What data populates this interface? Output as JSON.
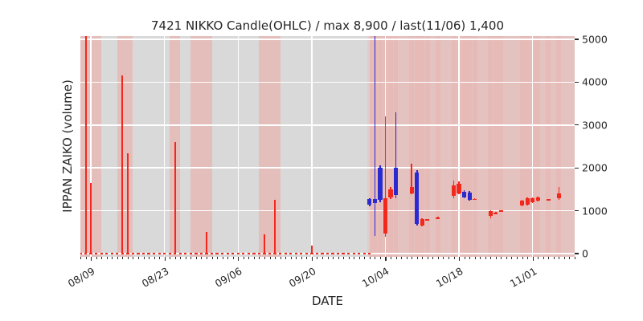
{
  "colors": {
    "background": "#ffffff",
    "plot_bg": "#d9d9d9",
    "grid": "#ffffff",
    "band": "#ff8178",
    "red": "#f2281c",
    "blue": "#2a2ad0",
    "text": "#262626"
  },
  "chart_data": {
    "type": "candlestick",
    "title": "7421 NIKKO Candle(OHLC) / max 8,900 / last(11/06) 1,400",
    "xlabel": "DATE",
    "ylabel": "IPPAN ZAIKO (volume)",
    "ylim": [
      0,
      5000
    ],
    "yticks": [
      0,
      1000,
      2000,
      3000,
      4000,
      5000
    ],
    "xticks": [
      "08/09",
      "08/23",
      "09/06",
      "09/20",
      "10/04",
      "10/18",
      "11/01"
    ],
    "x_domain": [
      "08/07",
      "11/09"
    ],
    "max_annotation": "max 8,900",
    "last_annotation": {
      "date": "11/06",
      "price": 1400
    },
    "grid": "on",
    "zero_marks": {
      "from": "08/07",
      "to": "10/01"
    },
    "volume_spikes": [
      {
        "date": "08/08",
        "value": 5400
      },
      {
        "date": "08/09",
        "value": 1650
      },
      {
        "date": "08/15",
        "value": 4150
      },
      {
        "date": "08/16",
        "value": 2350
      },
      {
        "date": "08/25",
        "value": 2600
      },
      {
        "date": "08/31",
        "value": 500
      },
      {
        "date": "09/11",
        "value": 450
      },
      {
        "date": "09/13",
        "value": 1250
      },
      {
        "date": "09/20",
        "value": 180
      }
    ],
    "highlight_bands": [
      {
        "from": "08/07",
        "to": "08/11",
        "alpha": 0.3
      },
      {
        "from": "08/14",
        "to": "08/17",
        "alpha": 0.3
      },
      {
        "from": "08/24",
        "to": "08/26",
        "alpha": 0.3
      },
      {
        "from": "08/28",
        "to": "09/01",
        "alpha": 0.3
      },
      {
        "from": "09/10",
        "to": "09/14",
        "alpha": 0.3
      },
      {
        "from": "10/01",
        "to": "11/09",
        "alpha": 0.26
      }
    ],
    "candles": [
      {
        "date": "10/01",
        "open": 1280,
        "close": 1150,
        "high": 1300,
        "low": 1100,
        "color": "blue"
      },
      {
        "date": "10/02",
        "open": 1280,
        "close": 1180,
        "high": 8900,
        "low": 420,
        "color": "blue"
      },
      {
        "date": "10/03",
        "open": 2000,
        "close": 1260,
        "high": 2060,
        "low": 1200,
        "color": "blue"
      },
      {
        "date": "10/04",
        "open": 460,
        "close": 1300,
        "high": 3200,
        "low": 400,
        "color": "red"
      },
      {
        "date": "10/05",
        "open": 1310,
        "close": 1500,
        "high": 1560,
        "low": 1280,
        "color": "red"
      },
      {
        "date": "10/06",
        "open": 2000,
        "close": 1360,
        "high": 3300,
        "low": 1300,
        "color": "blue"
      },
      {
        "date": "10/09",
        "open": 1400,
        "close": 1560,
        "high": 2100,
        "low": 1380,
        "color": "red"
      },
      {
        "date": "10/10",
        "open": 1900,
        "close": 700,
        "high": 1950,
        "low": 660,
        "color": "blue"
      },
      {
        "date": "10/11",
        "open": 660,
        "close": 800,
        "high": 820,
        "low": 640,
        "color": "red"
      },
      {
        "date": "10/12",
        "open": 770,
        "close": 800,
        "high": 810,
        "low": 760,
        "color": "red"
      },
      {
        "date": "10/14",
        "open": 820,
        "close": 845,
        "high": 855,
        "low": 810,
        "color": "red"
      },
      {
        "date": "10/17",
        "open": 1350,
        "close": 1600,
        "high": 1700,
        "low": 1300,
        "color": "red"
      },
      {
        "date": "10/18",
        "open": 1400,
        "close": 1620,
        "high": 1680,
        "low": 1380,
        "color": "red"
      },
      {
        "date": "10/19",
        "open": 1450,
        "close": 1310,
        "high": 1480,
        "low": 1290,
        "color": "blue"
      },
      {
        "date": "10/20",
        "open": 1430,
        "close": 1260,
        "high": 1460,
        "low": 1240,
        "color": "blue"
      },
      {
        "date": "10/21",
        "open": 1260,
        "close": 1280,
        "high": 1290,
        "low": 1250,
        "color": "red"
      },
      {
        "date": "10/24",
        "open": 880,
        "close": 1000,
        "high": 1010,
        "low": 820,
        "color": "red"
      },
      {
        "date": "10/25",
        "open": 935,
        "close": 960,
        "high": 970,
        "low": 925,
        "color": "red"
      },
      {
        "date": "10/26",
        "open": 985,
        "close": 1010,
        "high": 1020,
        "low": 975,
        "color": "red"
      },
      {
        "date": "10/30",
        "open": 1120,
        "close": 1240,
        "high": 1255,
        "low": 1100,
        "color": "red"
      },
      {
        "date": "10/31",
        "open": 1150,
        "close": 1300,
        "high": 1320,
        "low": 1130,
        "color": "red"
      },
      {
        "date": "11/01",
        "open": 1200,
        "close": 1300,
        "high": 1315,
        "low": 1185,
        "color": "red"
      },
      {
        "date": "11/02",
        "open": 1230,
        "close": 1310,
        "high": 1325,
        "low": 1215,
        "color": "red"
      },
      {
        "date": "11/04",
        "open": 1240,
        "close": 1265,
        "high": 1275,
        "low": 1230,
        "color": "red"
      },
      {
        "date": "11/06",
        "open": 1300,
        "close": 1400,
        "high": 1550,
        "low": 1250,
        "color": "red"
      }
    ]
  }
}
